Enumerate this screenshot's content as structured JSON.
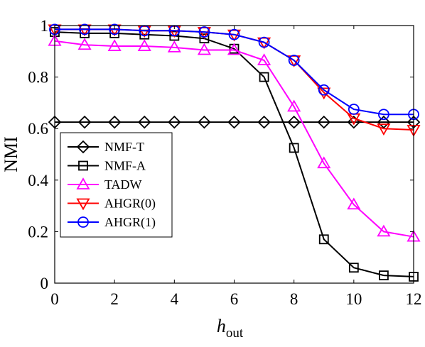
{
  "chart_data": {
    "type": "line",
    "xlabel_main": "h",
    "xlabel_sub": "out",
    "ylabel": "NMI",
    "xlim": [
      0,
      12
    ],
    "ylim": [
      0,
      1
    ],
    "xticks": [
      0,
      2,
      4,
      6,
      8,
      10,
      12
    ],
    "yticks": [
      0,
      0.2,
      0.4,
      0.6,
      0.8,
      1
    ],
    "ytick_labels": [
      "0",
      "0.2",
      "0.4",
      "0.6",
      "0.8",
      "1"
    ],
    "grid": false,
    "legend_position": "left",
    "x": [
      0,
      1,
      2,
      3,
      4,
      5,
      6,
      7,
      8,
      9,
      10,
      11,
      12
    ],
    "series": [
      {
        "name": "NMF-T",
        "color": "#000000",
        "marker": "diamond",
        "values": [
          0.625,
          0.625,
          0.625,
          0.625,
          0.625,
          0.625,
          0.625,
          0.625,
          0.625,
          0.625,
          0.625,
          0.625,
          0.625
        ]
      },
      {
        "name": "NMF-A",
        "color": "#000000",
        "marker": "square",
        "values": [
          0.975,
          0.97,
          0.97,
          0.965,
          0.96,
          0.95,
          0.91,
          0.8,
          0.525,
          0.17,
          0.06,
          0.03,
          0.025
        ]
      },
      {
        "name": "TADW",
        "color": "#ff00ff",
        "marker": "triangle-up",
        "values": [
          0.94,
          0.925,
          0.92,
          0.92,
          0.915,
          0.905,
          0.905,
          0.865,
          0.685,
          0.465,
          0.305,
          0.2,
          0.18
        ]
      },
      {
        "name": "AHGR(0)",
        "color": "#ff0000",
        "marker": "triangle-down",
        "values": [
          0.985,
          0.985,
          0.985,
          0.98,
          0.98,
          0.975,
          0.965,
          0.935,
          0.865,
          0.74,
          0.64,
          0.6,
          0.595
        ]
      },
      {
        "name": "AHGR(1)",
        "color": "#0000ff",
        "marker": "circle",
        "values": [
          0.985,
          0.985,
          0.985,
          0.98,
          0.98,
          0.975,
          0.965,
          0.935,
          0.865,
          0.75,
          0.675,
          0.655,
          0.655
        ]
      }
    ]
  }
}
